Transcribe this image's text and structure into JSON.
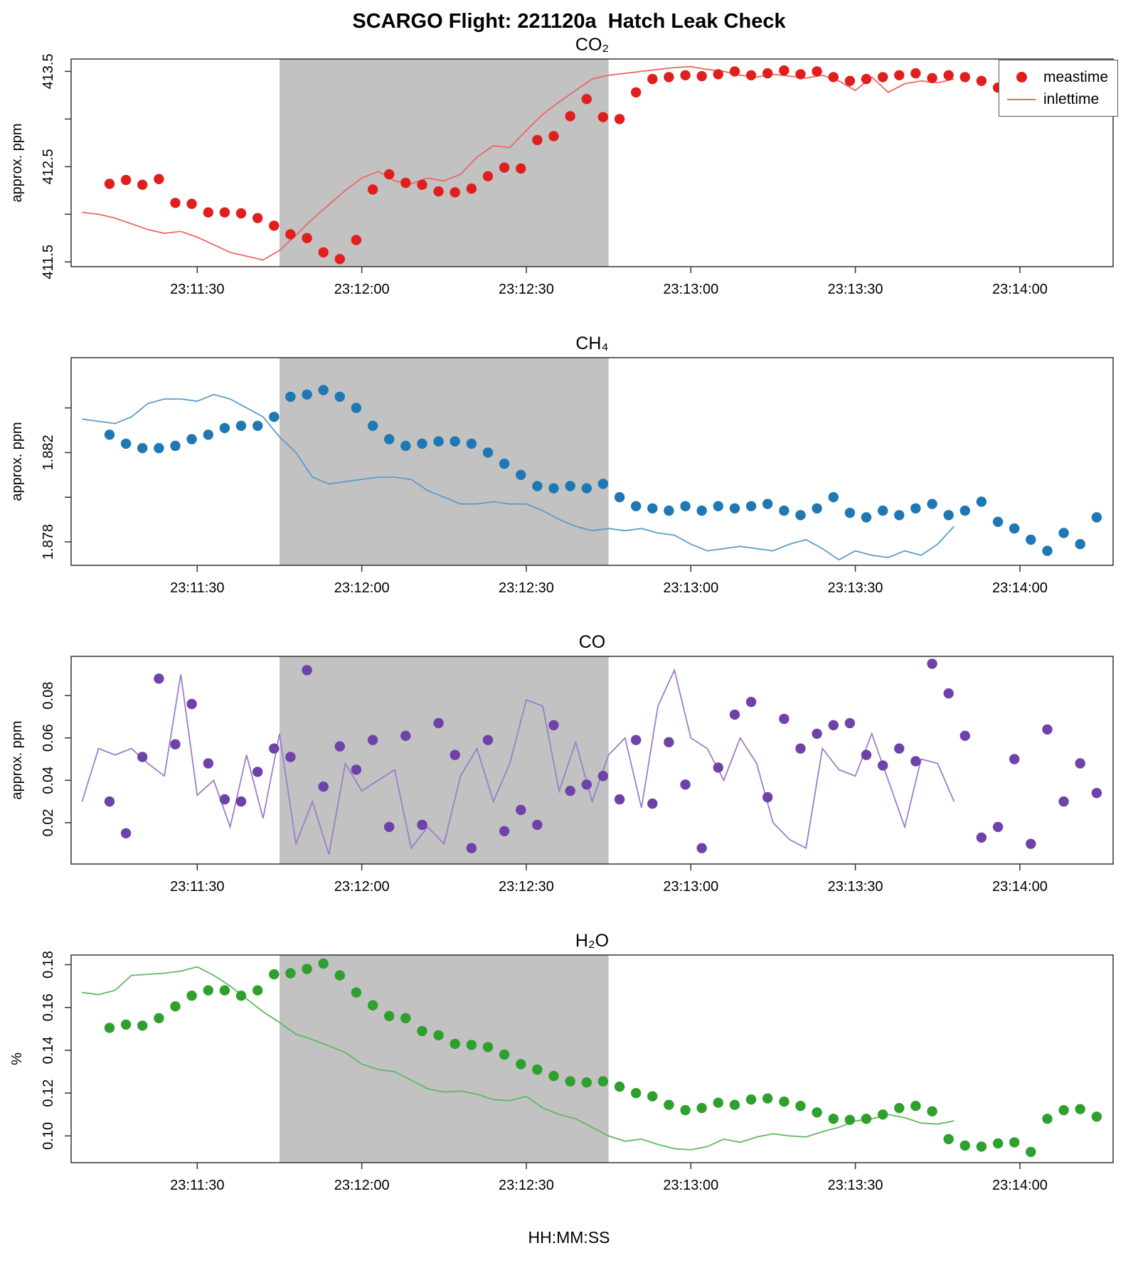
{
  "title": "SCARGO Flight: 221120a  Hatch Leak Check",
  "xlabel": "HH:MM:SS",
  "legend": {
    "entries": [
      {
        "label": "meastime",
        "marker": "point"
      },
      {
        "label": "inlettime",
        "marker": "line"
      }
    ]
  },
  "shaded_region": {
    "from": "23:11:45",
    "to": "23:12:45",
    "color": "#c2c2c2"
  },
  "x_axis": {
    "range": [
      "23:11:07",
      "23:14:17"
    ],
    "ticks": [
      "23:11:30",
      "23:12:00",
      "23:12:30",
      "23:13:00",
      "23:13:30",
      "23:14:00"
    ]
  },
  "chart_data": [
    {
      "type": "scatter",
      "key": "co2",
      "title": "CO₂",
      "ylabel": "approx. ppm",
      "ylim": [
        411.45,
        413.63
      ],
      "yticks": [
        {
          "v": 411.5,
          "label": "411.5"
        },
        {
          "v": 412.0,
          "label": ""
        },
        {
          "v": 412.5,
          "label": "412.5"
        },
        {
          "v": 413.0,
          "label": ""
        },
        {
          "v": 413.5,
          "label": "413.5"
        }
      ],
      "series": [
        {
          "name": "inlettime",
          "style": "line",
          "color": "#ee6563",
          "t0": "23:11:09",
          "dt_s": 3,
          "values": [
            412.02,
            412.0,
            411.96,
            411.9,
            411.84,
            411.8,
            411.82,
            411.76,
            411.68,
            411.6,
            411.56,
            411.52,
            411.62,
            411.78,
            411.95,
            412.1,
            412.25,
            412.38,
            412.45,
            412.35,
            412.32,
            412.38,
            412.35,
            412.42,
            412.6,
            412.72,
            412.7,
            412.88,
            413.05,
            413.18,
            413.3,
            413.42,
            413.46,
            413.48,
            413.5,
            413.52,
            413.54,
            413.55,
            413.52,
            413.5,
            413.46,
            413.44,
            413.47,
            413.45,
            413.43,
            413.46,
            413.4,
            413.3,
            413.44,
            413.28,
            413.37,
            413.4,
            413.38,
            413.42
          ]
        },
        {
          "name": "meastime",
          "style": "points",
          "color": "#e01f1d",
          "t0": "23:11:14",
          "dt_s": 3,
          "values": [
            412.32,
            412.36,
            412.31,
            412.37,
            412.12,
            412.11,
            412.02,
            412.02,
            412.01,
            411.96,
            411.88,
            411.79,
            411.75,
            411.6,
            411.53,
            411.73,
            412.26,
            412.42,
            412.33,
            412.31,
            412.24,
            412.23,
            412.27,
            412.4,
            412.49,
            412.48,
            412.78,
            412.82,
            413.03,
            413.21,
            413.02,
            413.0,
            413.28,
            413.42,
            413.44,
            413.46,
            413.45,
            413.47,
            413.5,
            413.46,
            413.48,
            413.51,
            413.47,
            413.5,
            413.44,
            413.4,
            413.42,
            413.44,
            413.46,
            413.48,
            413.43,
            413.46,
            413.44,
            413.4,
            413.33,
            413.3,
            413.35,
            413.42,
            413.3,
            413.3,
            413.47
          ]
        }
      ]
    },
    {
      "type": "scatter",
      "key": "ch4",
      "title": "CH₄",
      "ylabel": "approx. ppm",
      "ylim": [
        1.87695,
        1.88625
      ],
      "yticks": [
        {
          "v": 1.878,
          "label": "1.878"
        },
        {
          "v": 1.88,
          "label": ""
        },
        {
          "v": 1.882,
          "label": "1.882"
        },
        {
          "v": 1.884,
          "label": ""
        }
      ],
      "series": [
        {
          "name": "inlettime",
          "style": "line",
          "color": "#5b9dcb",
          "t0": "23:11:09",
          "dt_s": 3,
          "values": [
            1.8835,
            1.8834,
            1.8833,
            1.8836,
            1.8842,
            1.8844,
            1.8844,
            1.8843,
            1.8846,
            1.8844,
            1.884,
            1.8836,
            1.8827,
            1.882,
            1.8809,
            1.8806,
            1.8807,
            1.8808,
            1.8809,
            1.8809,
            1.8808,
            1.8803,
            1.88,
            1.8797,
            1.8797,
            1.8798,
            1.8797,
            1.8797,
            1.8794,
            1.879,
            1.8787,
            1.8785,
            1.8786,
            1.8785,
            1.8786,
            1.8784,
            1.8783,
            1.8779,
            1.8776,
            1.8777,
            1.8778,
            1.8777,
            1.8776,
            1.8779,
            1.8781,
            1.8777,
            1.8772,
            1.8776,
            1.8774,
            1.8773,
            1.8776,
            1.8774,
            1.8779,
            1.8787
          ]
        },
        {
          "name": "meastime",
          "style": "points",
          "color": "#1f77b4",
          "t0": "23:11:14",
          "dt_s": 3,
          "values": [
            1.8828,
            1.8824,
            1.8822,
            1.8822,
            1.8823,
            1.8826,
            1.8828,
            1.8831,
            1.8832,
            1.8832,
            1.8836,
            1.8845,
            1.8846,
            1.8848,
            1.8845,
            1.884,
            1.8832,
            1.8826,
            1.8823,
            1.8824,
            1.8825,
            1.8825,
            1.8824,
            1.882,
            1.8815,
            1.881,
            1.8805,
            1.8804,
            1.8805,
            1.8804,
            1.8806,
            1.88,
            1.8796,
            1.8795,
            1.8794,
            1.8796,
            1.8794,
            1.8796,
            1.8795,
            1.8796,
            1.8797,
            1.8794,
            1.8792,
            1.8795,
            1.88,
            1.8793,
            1.8791,
            1.8794,
            1.8792,
            1.8795,
            1.8797,
            1.8792,
            1.8794,
            1.8798,
            1.8789,
            1.8786,
            1.8781,
            1.8776,
            1.8784,
            1.8779,
            1.8791
          ]
        }
      ]
    },
    {
      "type": "scatter",
      "key": "co",
      "title": "CO",
      "ylabel": "approx. ppm",
      "ylim": [
        0.0005,
        0.0985
      ],
      "yticks": [
        {
          "v": 0.02,
          "label": "0.02"
        },
        {
          "v": 0.04,
          "label": "0.04"
        },
        {
          "v": 0.06,
          "label": "0.06"
        },
        {
          "v": 0.08,
          "label": "0.08"
        }
      ],
      "series": [
        {
          "name": "inlettime",
          "style": "line",
          "color": "#9d7dca",
          "t0": "23:11:09",
          "dt_s": 3,
          "values": [
            0.03,
            0.055,
            0.052,
            0.055,
            0.048,
            0.042,
            0.09,
            0.033,
            0.04,
            0.018,
            0.052,
            0.022,
            0.062,
            0.01,
            0.03,
            0.005,
            0.048,
            0.035,
            0.04,
            0.045,
            0.008,
            0.018,
            0.01,
            0.042,
            0.055,
            0.03,
            0.048,
            0.078,
            0.075,
            0.035,
            0.058,
            0.03,
            0.052,
            0.06,
            0.027,
            0.075,
            0.092,
            0.06,
            0.055,
            0.04,
            0.06,
            0.048,
            0.02,
            0.012,
            0.008,
            0.055,
            0.045,
            0.042,
            0.062,
            0.04,
            0.018,
            0.05,
            0.048,
            0.03
          ]
        },
        {
          "name": "meastime",
          "style": "points",
          "color": "#6e42a8",
          "t0": "23:11:14",
          "dt_s": 3,
          "values": [
            0.03,
            0.015,
            0.051,
            0.088,
            0.057,
            0.076,
            0.048,
            0.031,
            0.03,
            0.044,
            0.055,
            0.051,
            0.092,
            0.037,
            0.056,
            0.045,
            0.059,
            0.018,
            0.061,
            0.019,
            0.067,
            0.052,
            0.008,
            0.059,
            0.016,
            0.026,
            0.019,
            0.066,
            0.035,
            0.038,
            0.042,
            0.031,
            0.059,
            0.029,
            0.058,
            0.038,
            0.008,
            0.046,
            0.071,
            0.077,
            0.032,
            0.069,
            0.055,
            0.062,
            0.066,
            0.067,
            0.052,
            0.047,
            0.055,
            0.049,
            0.095,
            0.081,
            0.061,
            0.013,
            0.018,
            0.05,
            0.01,
            0.064,
            0.03,
            0.048,
            0.034
          ]
        }
      ]
    },
    {
      "type": "scatter",
      "key": "h2o",
      "title": "H₂O",
      "ylabel": "%",
      "ylim": [
        0.0875,
        0.1845
      ],
      "yticks": [
        {
          "v": 0.1,
          "label": "0.10"
        },
        {
          "v": 0.12,
          "label": "0.12"
        },
        {
          "v": 0.14,
          "label": "0.14"
        },
        {
          "v": 0.16,
          "label": "0.16"
        },
        {
          "v": 0.18,
          "label": "0.18"
        }
      ],
      "series": [
        {
          "name": "inlettime",
          "style": "line",
          "color": "#5fb95f",
          "t0": "23:11:09",
          "dt_s": 3,
          "values": [
            0.167,
            0.166,
            0.168,
            0.175,
            0.1755,
            0.176,
            0.177,
            0.179,
            0.175,
            0.17,
            0.164,
            0.158,
            0.153,
            0.1475,
            0.145,
            0.142,
            0.139,
            0.1335,
            0.131,
            0.13,
            0.126,
            0.122,
            0.1205,
            0.121,
            0.1195,
            0.117,
            0.1165,
            0.1185,
            0.113,
            0.11,
            0.108,
            0.104,
            0.1,
            0.0975,
            0.0985,
            0.096,
            0.094,
            0.0935,
            0.095,
            0.0985,
            0.097,
            0.0995,
            0.101,
            0.1,
            0.0995,
            0.102,
            0.104,
            0.107,
            0.108,
            0.11,
            0.1085,
            0.106,
            0.1055,
            0.107
          ]
        },
        {
          "name": "meastime",
          "style": "points",
          "color": "#2da02d",
          "t0": "23:11:14",
          "dt_s": 3,
          "values": [
            0.1505,
            0.152,
            0.1515,
            0.155,
            0.1605,
            0.1655,
            0.168,
            0.168,
            0.1655,
            0.168,
            0.1755,
            0.176,
            0.178,
            0.1805,
            0.175,
            0.167,
            0.161,
            0.156,
            0.155,
            0.149,
            0.147,
            0.143,
            0.1425,
            0.1415,
            0.138,
            0.1335,
            0.131,
            0.128,
            0.1255,
            0.125,
            0.1255,
            0.123,
            0.12,
            0.1185,
            0.1145,
            0.112,
            0.113,
            0.1155,
            0.1145,
            0.117,
            0.1175,
            0.116,
            0.114,
            0.111,
            0.108,
            0.1075,
            0.108,
            0.11,
            0.113,
            0.114,
            0.1115,
            0.0985,
            0.0955,
            0.095,
            0.0965,
            0.097,
            0.0925,
            0.108,
            0.112,
            0.1125,
            0.109
          ]
        }
      ]
    }
  ]
}
